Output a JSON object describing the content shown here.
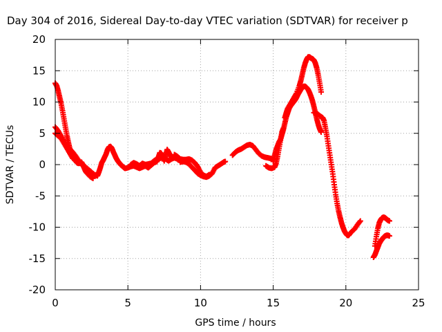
{
  "chart_data": {
    "type": "scatter",
    "title": "Day 304 of 2016, Sidereal Day-to-day VTEC variation (SDTVAR) for receiver p",
    "xlabel": "GPS time / hours",
    "ylabel": "SDTVAR / TECUs",
    "xlim": [
      0,
      25
    ],
    "ylim": [
      -20,
      20
    ],
    "xticks": [
      "0",
      "5",
      "10",
      "15",
      "20",
      "25"
    ],
    "yticks": [
      "-20",
      "-15",
      "-10",
      "-5",
      "0",
      "5",
      "10",
      "15",
      "20"
    ],
    "xtick_values": [
      0,
      5,
      10,
      15,
      20,
      25
    ],
    "ytick_values": [
      -20,
      -15,
      -10,
      -5,
      0,
      5,
      10,
      15,
      20
    ],
    "grid": true,
    "marker": "+",
    "series": [
      {
        "color": "#ff0000",
        "points": [
          [
            0.0,
            13.0
          ],
          [
            0.1,
            12.6
          ],
          [
            0.2,
            11.8
          ],
          [
            0.3,
            10.8
          ],
          [
            0.4,
            9.8
          ],
          [
            0.5,
            8.6
          ],
          [
            0.6,
            7.3
          ],
          [
            0.7,
            6.0
          ],
          [
            0.8,
            4.7
          ],
          [
            0.9,
            3.6
          ],
          [
            1.0,
            2.6
          ],
          [
            1.1,
            1.9
          ],
          [
            1.2,
            1.4
          ],
          [
            1.3,
            1.0
          ],
          [
            1.4,
            0.6
          ],
          [
            1.5,
            0.3
          ],
          [
            1.6,
            0.2
          ],
          [
            1.7,
            0.3
          ],
          [
            1.8,
            0.4
          ],
          [
            1.9,
            0.0
          ],
          [
            2.0,
            -0.6
          ],
          [
            2.1,
            -1.1
          ],
          [
            2.2,
            -1.4
          ],
          [
            2.4,
            -1.9
          ],
          [
            2.6,
            -2.2
          ],
          [
            0.0,
            6.0
          ],
          [
            0.2,
            5.4
          ],
          [
            0.4,
            4.6
          ],
          [
            0.6,
            3.7
          ],
          [
            0.8,
            3.0
          ],
          [
            1.0,
            2.5
          ],
          [
            1.2,
            2.0
          ],
          [
            1.4,
            1.4
          ],
          [
            1.6,
            0.7
          ],
          [
            1.8,
            0.1
          ],
          [
            2.0,
            -0.4
          ],
          [
            2.2,
            -0.9
          ],
          [
            2.4,
            -1.4
          ],
          [
            2.6,
            -1.7
          ],
          [
            0.0,
            5.0
          ],
          [
            0.2,
            4.6
          ],
          [
            0.4,
            4.2
          ],
          [
            0.6,
            3.4
          ],
          [
            0.8,
            2.6
          ],
          [
            1.0,
            1.8
          ],
          [
            1.2,
            1.0
          ],
          [
            1.5,
            0.4
          ],
          [
            1.8,
            0.1
          ],
          [
            2.1,
            -0.4
          ],
          [
            2.4,
            -1.0
          ],
          [
            2.7,
            -1.6
          ],
          [
            2.9,
            -1.8
          ],
          [
            3.0,
            -1.2
          ],
          [
            3.1,
            -0.5
          ],
          [
            3.2,
            0.3
          ],
          [
            3.3,
            0.7
          ],
          [
            3.4,
            1.2
          ],
          [
            3.5,
            1.7
          ],
          [
            3.6,
            2.4
          ],
          [
            3.7,
            2.8
          ],
          [
            3.8,
            2.9
          ],
          [
            3.9,
            2.6
          ],
          [
            4.0,
            2.0
          ],
          [
            4.1,
            1.5
          ],
          [
            4.2,
            1.0
          ],
          [
            4.3,
            0.6
          ],
          [
            4.4,
            0.3
          ],
          [
            4.5,
            0.0
          ],
          [
            4.6,
            -0.2
          ],
          [
            4.7,
            -0.4
          ],
          [
            4.8,
            -0.6
          ],
          [
            5.0,
            -0.5
          ],
          [
            5.2,
            -0.3
          ],
          [
            5.4,
            -0.2
          ],
          [
            5.6,
            -0.4
          ],
          [
            5.8,
            -0.6
          ],
          [
            6.0,
            -0.4
          ],
          [
            6.2,
            -0.2
          ],
          [
            6.4,
            -0.5
          ],
          [
            6.6,
            -0.1
          ],
          [
            6.8,
            0.3
          ],
          [
            7.0,
            0.5
          ],
          [
            7.1,
            1.2
          ],
          [
            7.2,
            1.9
          ],
          [
            7.3,
            1.8
          ],
          [
            7.4,
            1.2
          ],
          [
            7.5,
            0.6
          ],
          [
            7.6,
            1.5
          ],
          [
            7.7,
            2.4
          ],
          [
            7.8,
            2.0
          ],
          [
            7.9,
            1.5
          ],
          [
            8.0,
            1.2
          ],
          [
            5.2,
            0.0
          ],
          [
            5.4,
            0.3
          ],
          [
            5.6,
            0.1
          ],
          [
            5.8,
            -0.2
          ],
          [
            6.0,
            0.2
          ],
          [
            6.2,
            0.0
          ],
          [
            6.4,
            0.1
          ],
          [
            6.6,
            0.2
          ],
          [
            6.8,
            0.6
          ],
          [
            7.0,
            0.9
          ],
          [
            7.2,
            1.0
          ],
          [
            7.4,
            1.2
          ],
          [
            7.6,
            0.9
          ],
          [
            7.8,
            0.6
          ],
          [
            8.0,
            0.9
          ],
          [
            8.2,
            1.1
          ],
          [
            8.4,
            0.9
          ],
          [
            8.6,
            0.6
          ],
          [
            8.2,
            1.6
          ],
          [
            8.4,
            1.3
          ],
          [
            8.6,
            0.9
          ],
          [
            8.8,
            0.8
          ],
          [
            9.0,
            0.8
          ],
          [
            9.2,
            0.9
          ],
          [
            9.4,
            0.7
          ],
          [
            9.6,
            0.3
          ],
          [
            9.8,
            -0.3
          ],
          [
            10.0,
            -1.2
          ],
          [
            10.2,
            -1.7
          ],
          [
            10.4,
            -1.9
          ],
          [
            10.6,
            -1.6
          ],
          [
            8.6,
            0.4
          ],
          [
            8.8,
            0.5
          ],
          [
            9.0,
            0.4
          ],
          [
            9.2,
            0.1
          ],
          [
            9.4,
            -0.4
          ],
          [
            9.6,
            -0.9
          ],
          [
            9.8,
            -1.4
          ],
          [
            10.0,
            -1.7
          ],
          [
            10.2,
            -1.9
          ],
          [
            10.4,
            -2.0
          ],
          [
            10.6,
            -1.8
          ],
          [
            10.8,
            -1.4
          ],
          [
            11.0,
            -0.5
          ],
          [
            11.2,
            -0.2
          ],
          [
            11.4,
            0.1
          ],
          [
            11.6,
            0.4
          ],
          [
            11.7,
            0.5
          ],
          [
            12.2,
            1.5
          ],
          [
            12.4,
            2.0
          ],
          [
            12.6,
            2.3
          ],
          [
            12.8,
            2.5
          ],
          [
            13.0,
            2.8
          ],
          [
            13.2,
            3.1
          ],
          [
            13.4,
            3.2
          ],
          [
            13.6,
            3.0
          ],
          [
            13.8,
            2.4
          ],
          [
            14.0,
            1.8
          ],
          [
            14.2,
            1.4
          ],
          [
            14.4,
            1.2
          ],
          [
            14.6,
            1.1
          ],
          [
            14.8,
            1.0
          ],
          [
            15.0,
            0.9
          ],
          [
            14.5,
            -0.2
          ],
          [
            14.7,
            -0.5
          ],
          [
            14.9,
            -0.6
          ],
          [
            15.1,
            -0.4
          ],
          [
            15.2,
            0.2
          ],
          [
            15.3,
            1.3
          ],
          [
            15.4,
            2.6
          ],
          [
            15.5,
            3.9
          ],
          [
            15.6,
            5.2
          ],
          [
            15.7,
            5.8
          ],
          [
            15.0,
            0.5
          ],
          [
            15.1,
            1.5
          ],
          [
            15.2,
            2.4
          ],
          [
            15.3,
            3.0
          ],
          [
            15.4,
            3.6
          ],
          [
            15.5,
            4.0
          ],
          [
            15.6,
            4.8
          ],
          [
            15.7,
            5.6
          ],
          [
            15.8,
            6.6
          ],
          [
            15.9,
            7.6
          ],
          [
            16.0,
            8.3
          ],
          [
            16.1,
            9.0
          ],
          [
            16.2,
            9.4
          ],
          [
            16.3,
            9.7
          ],
          [
            16.4,
            10.0
          ],
          [
            16.5,
            10.3
          ],
          [
            16.6,
            10.7
          ],
          [
            16.7,
            11.2
          ],
          [
            16.8,
            11.6
          ],
          [
            16.9,
            12.0
          ],
          [
            17.0,
            12.3
          ],
          [
            17.1,
            12.5
          ],
          [
            17.2,
            12.5
          ],
          [
            17.3,
            12.3
          ],
          [
            17.4,
            12.0
          ],
          [
            17.5,
            11.5
          ],
          [
            17.6,
            10.9
          ],
          [
            17.7,
            10.2
          ],
          [
            17.8,
            9.3
          ],
          [
            17.9,
            8.3
          ],
          [
            18.0,
            7.3
          ],
          [
            18.1,
            6.4
          ],
          [
            18.2,
            5.7
          ],
          [
            18.3,
            5.2
          ],
          [
            15.8,
            7.5
          ],
          [
            15.9,
            8.3
          ],
          [
            16.0,
            9.0
          ],
          [
            16.2,
            9.8
          ],
          [
            16.4,
            10.6
          ],
          [
            16.6,
            11.4
          ],
          [
            16.8,
            12.6
          ],
          [
            16.9,
            13.4
          ],
          [
            17.0,
            14.4
          ],
          [
            17.1,
            15.4
          ],
          [
            17.2,
            16.2
          ],
          [
            17.3,
            16.8
          ],
          [
            17.4,
            17.2
          ],
          [
            17.5,
            17.2
          ],
          [
            17.6,
            17.0
          ],
          [
            17.7,
            16.9
          ],
          [
            17.8,
            16.7
          ],
          [
            17.9,
            16.2
          ],
          [
            18.0,
            15.4
          ],
          [
            18.1,
            14.3
          ],
          [
            18.2,
            13.0
          ],
          [
            18.3,
            11.6
          ],
          [
            17.8,
            8.3
          ],
          [
            18.0,
            8.2
          ],
          [
            18.2,
            7.8
          ],
          [
            18.4,
            7.5
          ],
          [
            18.5,
            7.0
          ],
          [
            18.6,
            5.8
          ],
          [
            18.7,
            4.5
          ],
          [
            18.8,
            3.0
          ],
          [
            18.9,
            1.5
          ],
          [
            19.0,
            0.0
          ],
          [
            19.1,
            -1.5
          ],
          [
            19.2,
            -3.2
          ],
          [
            19.3,
            -4.8
          ],
          [
            19.4,
            -6.2
          ],
          [
            19.5,
            -7.4
          ],
          [
            19.6,
            -8.4
          ],
          [
            19.7,
            -9.3
          ],
          [
            19.8,
            -10.0
          ],
          [
            19.9,
            -10.6
          ],
          [
            20.0,
            -11.0
          ],
          [
            20.1,
            -11.3
          ],
          [
            20.2,
            -11.3
          ],
          [
            20.4,
            -10.7
          ],
          [
            20.6,
            -10.3
          ],
          [
            20.8,
            -9.6
          ],
          [
            21.0,
            -9.0
          ],
          [
            21.9,
            -14.8
          ],
          [
            22.0,
            -14.4
          ],
          [
            22.1,
            -13.8
          ],
          [
            22.2,
            -13.2
          ],
          [
            22.3,
            -12.6
          ],
          [
            22.4,
            -12.2
          ],
          [
            22.5,
            -11.9
          ],
          [
            22.6,
            -11.6
          ],
          [
            22.7,
            -11.4
          ],
          [
            22.8,
            -11.3
          ],
          [
            22.9,
            -11.3
          ],
          [
            23.0,
            -11.4
          ],
          [
            22.0,
            -13.0
          ],
          [
            22.1,
            -11.5
          ],
          [
            22.2,
            -10.2
          ],
          [
            22.3,
            -9.3
          ],
          [
            22.4,
            -8.8
          ],
          [
            22.5,
            -8.5
          ],
          [
            22.6,
            -8.4
          ],
          [
            22.7,
            -8.5
          ],
          [
            22.8,
            -8.7
          ],
          [
            22.9,
            -8.9
          ],
          [
            23.0,
            -9.0
          ]
        ]
      }
    ]
  }
}
